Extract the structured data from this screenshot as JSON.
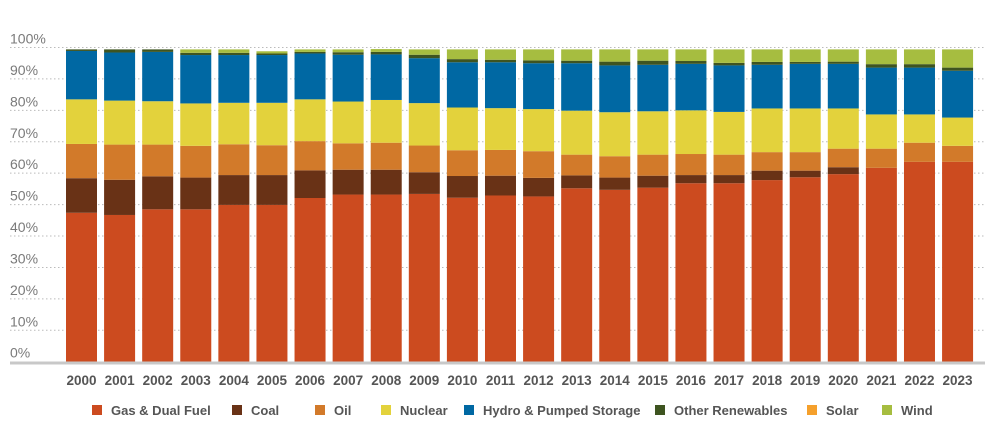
{
  "chart_data": {
    "type": "bar",
    "stacked": true,
    "title": "",
    "xlabel": "",
    "ylabel": "",
    "ylim": [
      0,
      100
    ],
    "y_ticks": [
      "0%",
      "10%",
      "20%",
      "30%",
      "40%",
      "50%",
      "60%",
      "70%",
      "80%",
      "90%",
      "100%"
    ],
    "grid": "horizontal dotted",
    "legend_position": "bottom",
    "categories": [
      "2000",
      "2001",
      "2002",
      "2003",
      "2004",
      "2005",
      "2006",
      "2007",
      "2008",
      "2009",
      "2010",
      "2011",
      "2012",
      "2013",
      "2014",
      "2015",
      "2016",
      "2017",
      "2018",
      "2019",
      "2020",
      "2021",
      "2022",
      "2023"
    ],
    "series": [
      {
        "name": "Gas & Dual Fuel",
        "color": "#cc4b1f",
        "values": [
          47.4,
          46.7,
          48.5,
          48.5,
          49.9,
          49.9,
          52.1,
          53.2,
          53.2,
          53.4,
          52.2,
          52.9,
          52.6,
          55.2,
          54.7,
          55.4,
          56.8,
          56.8,
          57.8,
          58.7,
          59.7,
          61.7,
          63.6,
          63.6
        ]
      },
      {
        "name": "Coal",
        "color": "#693216",
        "values": [
          11.0,
          11.2,
          10.5,
          10.1,
          9.5,
          9.5,
          8.8,
          7.9,
          7.9,
          6.9,
          6.9,
          6.3,
          5.9,
          4.1,
          3.9,
          3.8,
          2.6,
          2.6,
          3.0,
          2.1,
          2.2,
          0,
          0,
          0
        ]
      },
      {
        "name": "Oil",
        "color": "#d27a2a",
        "values": [
          10.9,
          11.2,
          10.1,
          10.1,
          9.8,
          9.5,
          9.3,
          8.4,
          8.6,
          8.5,
          8.2,
          8.2,
          8.5,
          6.6,
          6.8,
          6.7,
          6.7,
          6.5,
          5.9,
          5.9,
          5.9,
          6.1,
          6.1,
          5.1
        ]
      },
      {
        "name": "Nuclear",
        "color": "#e3d23c",
        "values": [
          14.2,
          14.0,
          13.8,
          13.5,
          13.2,
          13.5,
          13.3,
          13.3,
          13.6,
          13.5,
          13.6,
          13.3,
          13.4,
          14.0,
          14.0,
          13.8,
          13.9,
          13.6,
          13.9,
          13.9,
          12.8,
          10.9,
          9.0,
          9.0
        ]
      },
      {
        "name": "Hydro & Pumped Storage",
        "color": "#0068a3",
        "values": [
          15.4,
          15.3,
          15.7,
          15.4,
          15.2,
          15.2,
          14.6,
          14.9,
          14.5,
          14.3,
          14.4,
          14.6,
          14.6,
          15.1,
          14.9,
          14.8,
          14.8,
          14.8,
          13.9,
          14.2,
          14.2,
          14.9,
          14.9,
          14.9
        ]
      },
      {
        "name": "Other Renewables",
        "color": "#3e5420",
        "values": [
          0.5,
          1.0,
          0.8,
          0.7,
          0.7,
          0.5,
          0.5,
          0.8,
          0.8,
          1.1,
          1.0,
          0.8,
          0.9,
          0.8,
          1.2,
          1.3,
          0.9,
          0.8,
          0.9,
          0.6,
          0.7,
          1.1,
          1.1,
          1.0
        ]
      },
      {
        "name": "Solar",
        "color": "#f5a02c",
        "values": [
          0,
          0,
          0,
          0,
          0,
          0,
          0,
          0,
          0,
          0,
          0,
          0,
          0,
          0,
          0,
          0,
          0,
          0,
          0,
          0,
          0,
          0,
          0,
          0
        ]
      },
      {
        "name": "Wind",
        "color": "#a6bd40",
        "values": [
          0,
          0,
          0,
          1.1,
          1.1,
          0.7,
          0.8,
          0.9,
          0.9,
          1.7,
          3.1,
          3.3,
          3.5,
          3.6,
          3.9,
          3.6,
          3.7,
          4.3,
          4.0,
          4.0,
          3.9,
          4.7,
          4.7,
          5.8
        ]
      }
    ]
  }
}
